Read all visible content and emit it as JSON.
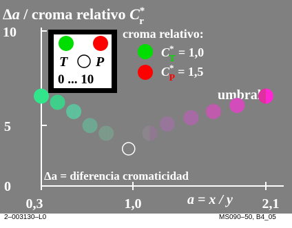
{
  "chart_data": {
    "type": "scatter",
    "title_prefix": "Δ",
    "title_var": "a",
    "title_rest": " / croma relativo  ",
    "title_sym": "C",
    "title_sup": "*",
    "title_sub": "r",
    "xlabel": "a = x / y",
    "x_ticks": [
      "0,3",
      "1,0",
      "2,1"
    ],
    "y_ticks": [
      "0",
      "5",
      "10"
    ],
    "xlim": [
      0.3,
      2.1
    ],
    "ylim": [
      0,
      10
    ],
    "grid": false,
    "threshold_label": "umbral",
    "bottom_note": "Δa = diferencia cromaticidad",
    "inset": {
      "left_label": "T",
      "right_label": "P",
      "range_label": "0 ... 10"
    },
    "legend": {
      "title": "croma relativo:",
      "entries": [
        {
          "sub": "T",
          "value": "= 1,0",
          "color": "#00dd00"
        },
        {
          "sub": "P",
          "value": "= 1,5",
          "color": "#ff0000"
        }
      ]
    },
    "reference_point": {
      "x": 1.0,
      "y": 2.4
    },
    "points": [
      {
        "x": 0.3,
        "y": 5.8,
        "left": "#33e58a",
        "right": "#33e58a"
      },
      {
        "x": 0.43,
        "y": 5.4,
        "left": "#3fcf8b",
        "right": "#3fcf8b"
      },
      {
        "x": 0.56,
        "y": 4.8,
        "left": "#5fc09d",
        "right": "#5fc09d"
      },
      {
        "x": 0.69,
        "y": 3.9,
        "left": "#6ea892",
        "right": "#6ea892"
      },
      {
        "x": 0.82,
        "y": 3.4,
        "left": "#7c9a8c",
        "right": "#7c9a8c"
      },
      {
        "x": 1.17,
        "y": 3.4,
        "left": "#8c868c",
        "right": "#8f7890"
      },
      {
        "x": 1.31,
        "y": 4.0,
        "left": "#98759a",
        "right": "#98759a"
      },
      {
        "x": 1.5,
        "y": 4.4,
        "left": "#a86aa4",
        "right": "#a86aa4"
      },
      {
        "x": 1.68,
        "y": 4.8,
        "left": "#bf5aad",
        "right": "#bf5aad"
      },
      {
        "x": 1.87,
        "y": 5.2,
        "left": "#d44cbb",
        "right": "#d44cbb"
      },
      {
        "x": 2.1,
        "y": 5.8,
        "left": "#df2fa0",
        "right": "#ff28d2"
      }
    ]
  },
  "footer": {
    "left": "2–003130–L0",
    "right": "MS090–50, B4_05"
  }
}
